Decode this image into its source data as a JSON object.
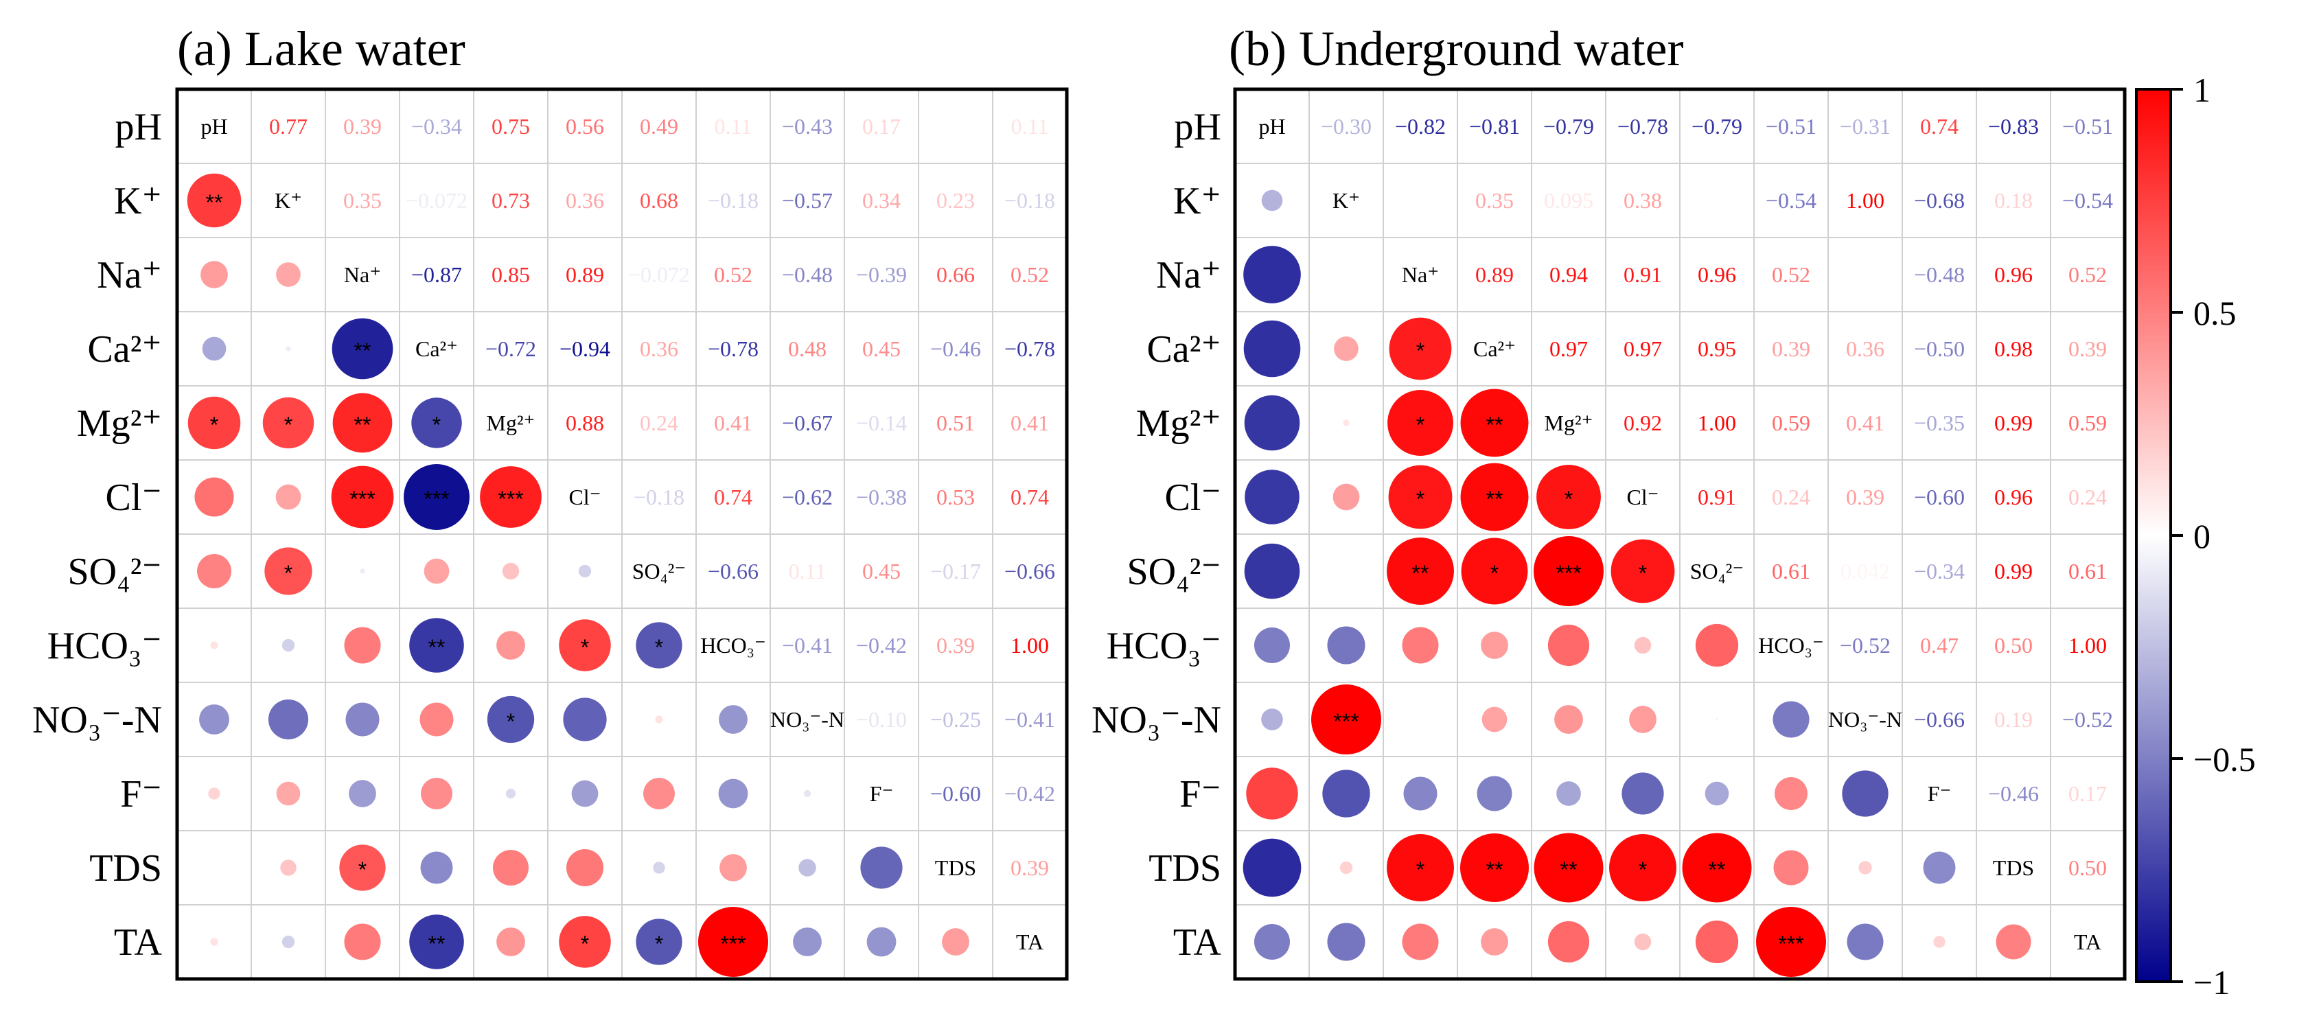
{
  "chart_data": [
    {
      "type": "heatmap",
      "title": "(a) Lake water",
      "row_labels": [
        "pH",
        "K⁺",
        "Na⁺",
        "Ca²⁺",
        "Mg²⁺",
        "Cl⁻",
        "SO₄²⁻",
        "HCO₃⁻",
        "NO₃⁻-N",
        "F⁻",
        "TDS",
        "TA"
      ],
      "diagonal_labels": [
        "pH",
        "K⁺",
        "Na⁺",
        "Ca²⁺",
        "Mg²⁺",
        "Cl⁻",
        "SO₄²⁻",
        "HCO₃⁻",
        "NO₃⁻-N",
        "F⁻",
        "TDS",
        "TA"
      ],
      "upper_text": [
        [
          null,
          "0.77",
          "0.39",
          "−0.34",
          "0.75",
          "0.56",
          "0.49",
          "0.11",
          "−0.43",
          "0.17",
          "",
          "0.11"
        ],
        [
          null,
          null,
          "0.35",
          "−0.072",
          "0.73",
          "0.36",
          "0.68",
          "−0.18",
          "−0.57",
          "0.34",
          "0.23",
          "−0.18"
        ],
        [
          null,
          null,
          null,
          "−0.87",
          "0.85",
          "0.89",
          "−0.072",
          "0.52",
          "−0.48",
          "−0.39",
          "0.66",
          "0.52"
        ],
        [
          null,
          null,
          null,
          null,
          "−0.72",
          "−0.94",
          "0.36",
          "−0.78",
          "0.48",
          "0.45",
          "−0.46",
          "−0.78"
        ],
        [
          null,
          null,
          null,
          null,
          null,
          "0.88",
          "0.24",
          "0.41",
          "−0.67",
          "−0.14",
          "0.51",
          "0.41"
        ],
        [
          null,
          null,
          null,
          null,
          null,
          null,
          "−0.18",
          "0.74",
          "−0.62",
          "−0.38",
          "0.53",
          "0.74"
        ],
        [
          null,
          null,
          null,
          null,
          null,
          null,
          null,
          "−0.66",
          "0.11",
          "0.45",
          "−0.17",
          "−0.66"
        ],
        [
          null,
          null,
          null,
          null,
          null,
          null,
          null,
          null,
          "−0.41",
          "−0.42",
          "0.39",
          "1.00"
        ],
        [
          null,
          null,
          null,
          null,
          null,
          null,
          null,
          null,
          null,
          "−0.10",
          "−0.25",
          "−0.41"
        ],
        [
          null,
          null,
          null,
          null,
          null,
          null,
          null,
          null,
          null,
          null,
          "−0.60",
          "−0.42"
        ],
        [
          null,
          null,
          null,
          null,
          null,
          null,
          null,
          null,
          null,
          null,
          null,
          "0.39"
        ],
        [
          null,
          null,
          null,
          null,
          null,
          null,
          null,
          null,
          null,
          null,
          null,
          null
        ]
      ],
      "stars": [
        [
          null,
          null,
          null,
          null,
          null,
          null,
          null,
          null,
          null,
          null,
          null,
          null
        ],
        [
          "**",
          null,
          null,
          null,
          null,
          null,
          null,
          null,
          null,
          null,
          null,
          null
        ],
        [
          "",
          "",
          null,
          null,
          null,
          null,
          null,
          null,
          null,
          null,
          null,
          null
        ],
        [
          "",
          "",
          "**",
          null,
          null,
          null,
          null,
          null,
          null,
          null,
          null,
          null
        ],
        [
          "*",
          "*",
          "**",
          "*",
          null,
          null,
          null,
          null,
          null,
          null,
          null,
          null
        ],
        [
          "",
          "",
          "***",
          "***",
          "***",
          null,
          null,
          null,
          null,
          null,
          null,
          null
        ],
        [
          "",
          "*",
          "",
          "",
          "",
          "",
          null,
          null,
          null,
          null,
          null,
          null
        ],
        [
          "",
          "",
          "",
          "**",
          "",
          "*",
          "*",
          null,
          null,
          null,
          null,
          null
        ],
        [
          "",
          "",
          "",
          "",
          "*",
          "",
          "",
          "",
          null,
          null,
          null,
          null
        ],
        [
          "",
          "",
          "",
          "",
          "",
          "",
          "",
          "",
          "",
          null,
          null,
          null
        ],
        [
          "",
          "",
          "*",
          "",
          "",
          "",
          "",
          "",
          "",
          "",
          null,
          null
        ],
        [
          "",
          "",
          "",
          "**",
          "",
          "*",
          "*",
          "***",
          "",
          "",
          "",
          null
        ]
      ]
    },
    {
      "type": "heatmap",
      "title": "(b) Underground water",
      "row_labels": [
        "pH",
        "K⁺",
        "Na⁺",
        "Ca²⁺",
        "Mg²⁺",
        "Cl⁻",
        "SO₄²⁻",
        "HCO₃⁻",
        "NO₃⁻-N",
        "F⁻",
        "TDS",
        "TA"
      ],
      "diagonal_labels": [
        "pH",
        "K⁺",
        "Na⁺",
        "Ca²⁺",
        "Mg²⁺",
        "Cl⁻",
        "SO₄²⁻",
        "HCO₃⁻",
        "NO₃⁻-N",
        "F⁻",
        "TDS",
        "TA"
      ],
      "upper_text": [
        [
          null,
          "−0.30",
          "−0.82",
          "−0.81",
          "−0.79",
          "−0.78",
          "−0.79",
          "−0.51",
          "−0.31",
          "0.74",
          "−0.83",
          "−0.51"
        ],
        [
          null,
          null,
          "",
          "0.35",
          "0.095",
          "0.38",
          "",
          "−0.54",
          "1.00",
          "−0.68",
          "0.18",
          "−0.54"
        ],
        [
          null,
          null,
          null,
          "0.89",
          "0.94",
          "0.91",
          "0.96",
          "0.52",
          "",
          "−0.48",
          "0.96",
          "0.52"
        ],
        [
          null,
          null,
          null,
          null,
          "0.97",
          "0.97",
          "0.95",
          "0.39",
          "0.36",
          "−0.50",
          "0.98",
          "0.39"
        ],
        [
          null,
          null,
          null,
          null,
          null,
          "0.92",
          "1.00",
          "0.59",
          "0.41",
          "−0.35",
          "0.99",
          "0.59"
        ],
        [
          null,
          null,
          null,
          null,
          null,
          null,
          "0.91",
          "0.24",
          "0.39",
          "−0.60",
          "0.96",
          "0.24"
        ],
        [
          null,
          null,
          null,
          null,
          null,
          null,
          null,
          "0.61",
          "0.042",
          "−0.34",
          "0.99",
          "0.61"
        ],
        [
          null,
          null,
          null,
          null,
          null,
          null,
          null,
          null,
          "−0.52",
          "0.47",
          "0.50",
          "1.00"
        ],
        [
          null,
          null,
          null,
          null,
          null,
          null,
          null,
          null,
          null,
          "−0.66",
          "0.19",
          "−0.52"
        ],
        [
          null,
          null,
          null,
          null,
          null,
          null,
          null,
          null,
          null,
          null,
          "−0.46",
          "0.17"
        ],
        [
          null,
          null,
          null,
          null,
          null,
          null,
          null,
          null,
          null,
          null,
          null,
          "0.50"
        ],
        [
          null,
          null,
          null,
          null,
          null,
          null,
          null,
          null,
          null,
          null,
          null,
          null
        ]
      ],
      "stars": [
        [
          null,
          null,
          null,
          null,
          null,
          null,
          null,
          null,
          null,
          null,
          null,
          null
        ],
        [
          "",
          null,
          null,
          null,
          null,
          null,
          null,
          null,
          null,
          null,
          null,
          null
        ],
        [
          "",
          "",
          null,
          null,
          null,
          null,
          null,
          null,
          null,
          null,
          null,
          null
        ],
        [
          "",
          "",
          "*",
          null,
          null,
          null,
          null,
          null,
          null,
          null,
          null,
          null
        ],
        [
          "",
          "",
          "*",
          "**",
          null,
          null,
          null,
          null,
          null,
          null,
          null,
          null
        ],
        [
          "",
          "",
          "*",
          "**",
          "*",
          null,
          null,
          null,
          null,
          null,
          null,
          null
        ],
        [
          "",
          "",
          "**",
          "*",
          "***",
          "*",
          null,
          null,
          null,
          null,
          null,
          null
        ],
        [
          "",
          "",
          "",
          "",
          "",
          "",
          "",
          null,
          null,
          null,
          null,
          null
        ],
        [
          "",
          "***",
          "",
          "",
          "",
          "",
          "",
          "",
          null,
          null,
          null,
          null
        ],
        [
          "",
          "",
          "",
          "",
          "",
          "",
          "",
          "",
          "",
          null,
          null,
          null
        ],
        [
          "",
          "",
          "*",
          "**",
          "**",
          "*",
          "**",
          "",
          "",
          "",
          null,
          null
        ],
        [
          "",
          "",
          "",
          "",
          "",
          "",
          "",
          "***",
          "",
          "",
          "",
          null
        ]
      ]
    }
  ],
  "colorbar": {
    "ticks": [
      "1",
      "0.5",
      "0",
      "−0.5",
      "−1"
    ],
    "range": [
      -1,
      1
    ]
  },
  "colors": {
    "positive": "#ff0000",
    "neutral": "#ffffff",
    "negative": "#00008b"
  }
}
